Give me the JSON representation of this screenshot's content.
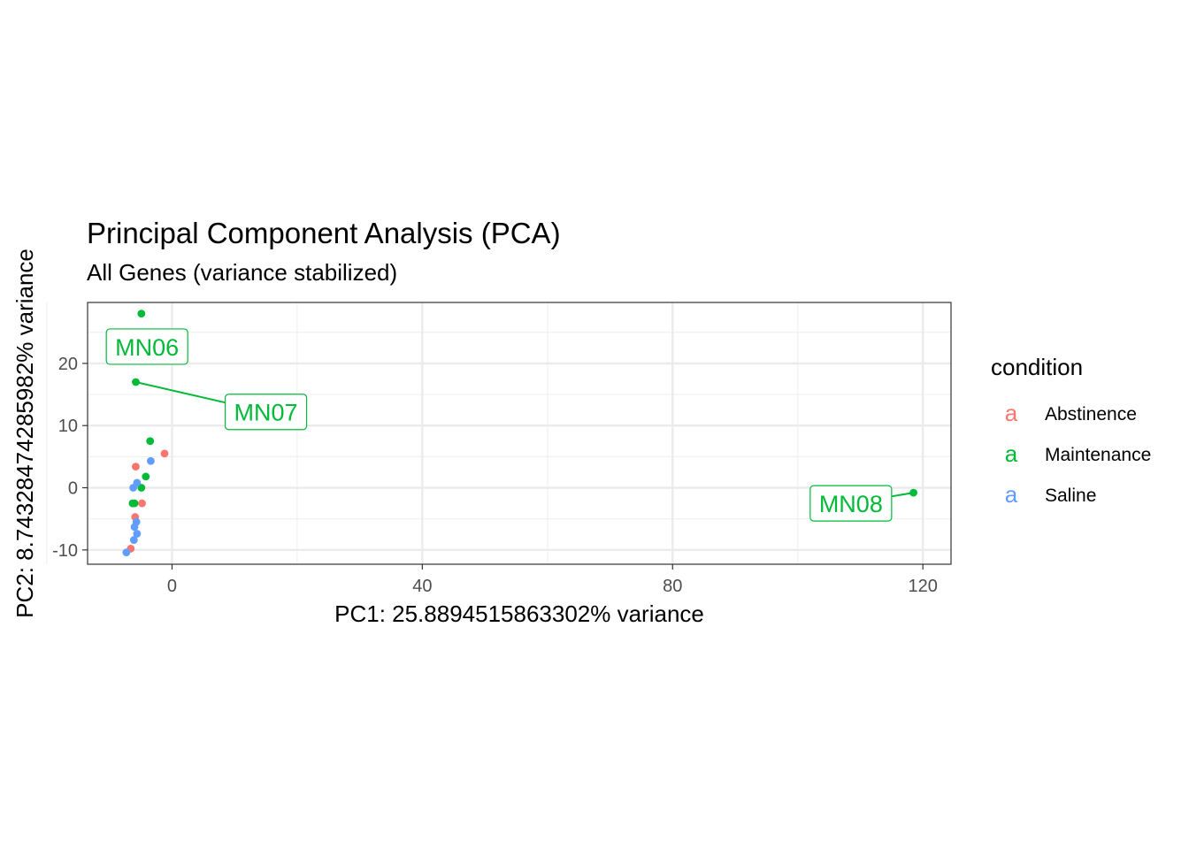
{
  "chart_data": {
    "type": "scatter",
    "title": "Principal Component Analysis (PCA)",
    "subtitle": "All Genes (variance stabilized)",
    "xlabel": "PC1: 25.8894515863302% variance",
    "ylabel": "PC2: 8.74328474285982% variance",
    "xlim": [
      -13.5,
      124.5
    ],
    "ylim": [
      -12.3,
      29.8
    ],
    "x_ticks": [
      0,
      40,
      80,
      120
    ],
    "x_tick_labels": [
      "0",
      "40",
      "80",
      "120"
    ],
    "y_ticks": [
      -10,
      0,
      10,
      20
    ],
    "y_tick_labels": [
      "-10",
      "0",
      "10",
      "20"
    ],
    "x_minor": [
      -20,
      20,
      60,
      100
    ],
    "y_minor": [
      -5,
      5,
      15,
      25
    ],
    "grid": true,
    "legend": {
      "title": "condition",
      "position": "right",
      "key_glyph": "a",
      "entries": [
        {
          "name": "Abstinence",
          "color": "#F8766D"
        },
        {
          "name": "Maintenance",
          "color": "#00BA38"
        },
        {
          "name": "Saline",
          "color": "#619CFF"
        }
      ]
    },
    "series": [
      {
        "name": "Abstinence",
        "color": "#F8766D",
        "points": [
          [
            -5.8,
            3.4
          ],
          [
            -1.2,
            5.5
          ],
          [
            -4.8,
            -2.5
          ],
          [
            -5.9,
            -4.7
          ],
          [
            -6.6,
            -9.8
          ]
        ]
      },
      {
        "name": "Maintenance",
        "color": "#00BA38",
        "points": [
          [
            -4.9,
            28.0
          ],
          [
            -5.8,
            17.0
          ],
          [
            -3.5,
            7.5
          ],
          [
            -4.2,
            1.8
          ],
          [
            -4.9,
            0.0
          ],
          [
            -6.3,
            -2.5
          ],
          [
            -6.0,
            -2.5
          ],
          [
            118.5,
            -0.8
          ]
        ]
      },
      {
        "name": "Saline",
        "color": "#619CFF",
        "points": [
          [
            -3.4,
            4.3
          ],
          [
            -5.6,
            0.8
          ],
          [
            -6.2,
            0.0
          ],
          [
            -5.7,
            -5.5
          ],
          [
            -6.0,
            -6.3
          ],
          [
            -5.6,
            -7.4
          ],
          [
            -6.1,
            -8.4
          ],
          [
            -7.3,
            -10.4
          ]
        ]
      }
    ],
    "annotations": [
      {
        "label": "MN06",
        "color": "#00BA38",
        "x": -4.0,
        "y": 22.7,
        "point": [
          -4.9,
          28.0
        ]
      },
      {
        "label": "MN07",
        "color": "#00BA38",
        "x": 15.0,
        "y": 12.2,
        "point": [
          -5.8,
          17.0
        ]
      },
      {
        "label": "MN08",
        "color": "#00BA38",
        "x": 108.5,
        "y": -2.5,
        "point": [
          118.5,
          -0.8
        ]
      }
    ]
  }
}
